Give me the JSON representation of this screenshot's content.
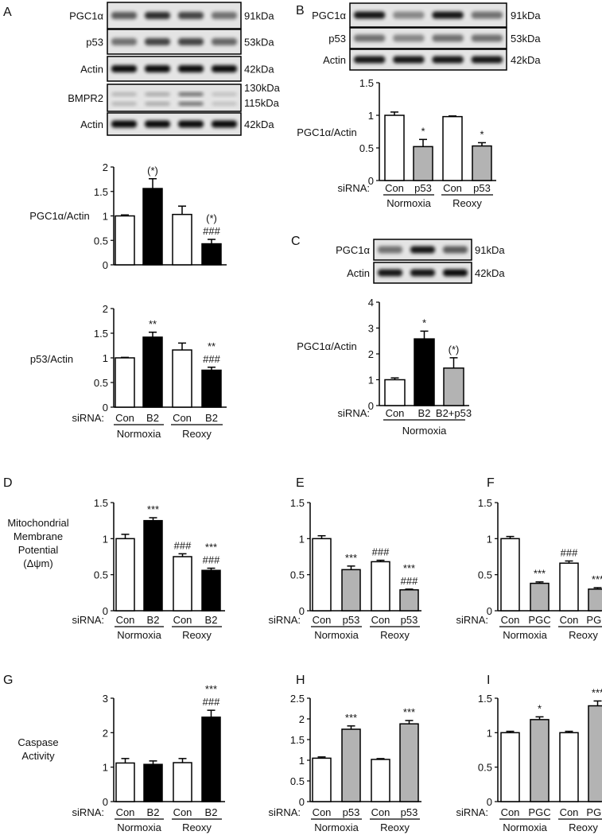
{
  "colors": {
    "Con": "#ffffff",
    "B2": "#000000",
    "p53": "#b3b3b3",
    "B2+p53": "#b3b3b3",
    "PGC": "#b3b3b3"
  },
  "panels": {
    "A": {
      "letter": "A",
      "blots": [
        {
          "label": "PGC1α",
          "size": "91kDa"
        },
        {
          "label": "p53",
          "size": "53kDa"
        },
        {
          "label": "Actin",
          "size": "42kDa"
        },
        {
          "label": "BMPR2",
          "size": "130kDa",
          "size2": "115kDa"
        },
        {
          "label": "Actin",
          "size": "42kDa"
        }
      ]
    },
    "B": {
      "letter": "B",
      "blots": [
        {
          "label": "PGC1α",
          "size": "91kDa"
        },
        {
          "label": "p53",
          "size": "53kDa"
        },
        {
          "label": "Actin",
          "size": "42kDa"
        }
      ]
    },
    "C": {
      "letter": "C",
      "blots": [
        {
          "label": "PGC1α",
          "size": "91kDa"
        },
        {
          "label": "Actin",
          "size": "42kDa"
        }
      ]
    },
    "D": {
      "letter": "D"
    },
    "E": {
      "letter": "E"
    },
    "F": {
      "letter": "F"
    },
    "G": {
      "letter": "G"
    },
    "H": {
      "letter": "H"
    },
    "I": {
      "letter": "I"
    }
  },
  "chart_data": [
    {
      "id": "A1",
      "type": "bar",
      "ylabel": [
        "PGC1α/Actin"
      ],
      "ylim": [
        0,
        2
      ],
      "yticks": [
        "0",
        "0.5",
        "1",
        "1.5",
        "2"
      ],
      "categories": [
        "Con",
        "B2",
        "Con",
        "B2"
      ],
      "values": [
        1.0,
        1.56,
        1.03,
        0.43
      ],
      "errors": [
        0.02,
        0.2,
        0.17,
        0.09
      ],
      "annotations": [
        [],
        [
          "(*)"
        ],
        [],
        [
          "(*)",
          "###"
        ]
      ]
    },
    {
      "id": "A2",
      "type": "bar",
      "ylabel": [
        "p53/Actin"
      ],
      "ylim": [
        0,
        2
      ],
      "yticks": [
        "0",
        "0.5",
        "1",
        "1.5",
        "2"
      ],
      "categories": [
        "Con",
        "B2",
        "Con",
        "B2"
      ],
      "values": [
        1.0,
        1.42,
        1.16,
        0.75
      ],
      "errors": [
        0.01,
        0.1,
        0.14,
        0.06
      ],
      "annotations": [
        [],
        [
          "**"
        ],
        [],
        [
          "**",
          "###"
        ]
      ],
      "xprefix": "siRNA:",
      "groups": [
        {
          "label": "Normoxia",
          "bars": [
            0,
            1
          ]
        },
        {
          "label": "Reoxy",
          "bars": [
            2,
            3
          ]
        }
      ]
    },
    {
      "id": "B",
      "type": "bar",
      "ylabel": [
        "PGC1α/Actin"
      ],
      "ylim": [
        0,
        1.5
      ],
      "yticks": [
        "0",
        "0.5",
        "1",
        "1.5"
      ],
      "categories": [
        "Con",
        "p53",
        "Con",
        "p53"
      ],
      "values": [
        1.0,
        0.52,
        0.98,
        0.53
      ],
      "errors": [
        0.05,
        0.11,
        0.01,
        0.05
      ],
      "annotations": [
        [],
        [
          "*"
        ],
        [],
        [
          "*"
        ]
      ],
      "xprefix": "siRNA:",
      "groups": [
        {
          "label": "Normoxia",
          "bars": [
            0,
            1
          ]
        },
        {
          "label": "Reoxy",
          "bars": [
            2,
            3
          ]
        }
      ]
    },
    {
      "id": "C",
      "type": "bar",
      "ylabel": [
        "PGC1α/Actin"
      ],
      "ylim": [
        0,
        4
      ],
      "yticks": [
        "0",
        "1",
        "2",
        "3",
        "4"
      ],
      "categories": [
        "Con",
        "B2",
        "B2+p53"
      ],
      "values": [
        1.0,
        2.58,
        1.45
      ],
      "errors": [
        0.07,
        0.3,
        0.4
      ],
      "annotations": [
        [],
        [
          "*"
        ],
        [
          "(*)"
        ]
      ],
      "xprefix": "siRNA:",
      "groups": [
        {
          "label": "Normoxia",
          "bars": [
            0,
            1,
            2
          ]
        }
      ]
    },
    {
      "id": "D",
      "type": "bar",
      "ylabel": [
        "Mitochondrial",
        "Membrane",
        "Potential",
        "(Δψm)"
      ],
      "ylim": [
        0,
        1.5
      ],
      "yticks": [
        "0",
        "0.5",
        "1",
        "1.5"
      ],
      "categories": [
        "Con",
        "B2",
        "Con",
        "B2"
      ],
      "values": [
        1.0,
        1.25,
        0.75,
        0.56
      ],
      "errors": [
        0.06,
        0.04,
        0.04,
        0.03
      ],
      "annotations": [
        [],
        [
          "***"
        ],
        [
          "###"
        ],
        [
          "***",
          "###"
        ]
      ],
      "xprefix": "siRNA:",
      "groups": [
        {
          "label": "Normoxia",
          "bars": [
            0,
            1
          ]
        },
        {
          "label": "Reoxy",
          "bars": [
            2,
            3
          ]
        }
      ]
    },
    {
      "id": "E",
      "type": "bar",
      "ylabel": [],
      "ylim": [
        0,
        1.5
      ],
      "yticks": [
        "0",
        "0.5",
        "1",
        "1.5"
      ],
      "categories": [
        "Con",
        "p53",
        "Con",
        "p53"
      ],
      "values": [
        1.0,
        0.57,
        0.68,
        0.29
      ],
      "errors": [
        0.04,
        0.05,
        0.02,
        0.01
      ],
      "annotations": [
        [],
        [
          "***"
        ],
        [
          "###"
        ],
        [
          "***",
          "###"
        ]
      ],
      "xprefix": "siRNA:",
      "groups": [
        {
          "label": "Normoxia",
          "bars": [
            0,
            1
          ]
        },
        {
          "label": "Reoxy",
          "bars": [
            2,
            3
          ]
        }
      ]
    },
    {
      "id": "F",
      "type": "bar",
      "ylabel": [],
      "ylim": [
        0,
        1.5
      ],
      "yticks": [
        "0",
        "0.5",
        "1",
        "1.5"
      ],
      "categories": [
        "Con",
        "PGC",
        "Con",
        "PGC"
      ],
      "values": [
        1.0,
        0.38,
        0.66,
        0.3
      ],
      "errors": [
        0.03,
        0.02,
        0.03,
        0.02
      ],
      "annotations": [
        [],
        [
          "***"
        ],
        [
          "###"
        ],
        [
          "***"
        ]
      ],
      "xprefix": "siRNA:",
      "groups": [
        {
          "label": "Normoxia",
          "bars": [
            0,
            1
          ]
        },
        {
          "label": "Reoxy",
          "bars": [
            2,
            3
          ]
        }
      ]
    },
    {
      "id": "G",
      "type": "bar",
      "ylabel": [
        "Caspase",
        "Activity"
      ],
      "ylim": [
        0,
        3
      ],
      "yticks": [
        "0",
        "1",
        "2",
        "3"
      ],
      "categories": [
        "Con",
        "B2",
        "Con",
        "B2"
      ],
      "values": [
        1.12,
        1.08,
        1.13,
        2.45
      ],
      "errors": [
        0.13,
        0.1,
        0.12,
        0.2
      ],
      "annotations": [
        [],
        [],
        [],
        [
          "***",
          "###"
        ]
      ],
      "xprefix": "siRNA:",
      "groups": [
        {
          "label": "Normoxia",
          "bars": [
            0,
            1
          ]
        },
        {
          "label": "Reoxy",
          "bars": [
            2,
            3
          ]
        }
      ]
    },
    {
      "id": "H",
      "type": "bar",
      "ylabel": [],
      "ylim": [
        0,
        2.5
      ],
      "yticks": [
        "0",
        "0.5",
        "1",
        "1.5",
        "2",
        "2.5"
      ],
      "categories": [
        "Con",
        "p53",
        "Con",
        "p53"
      ],
      "values": [
        1.05,
        1.75,
        1.02,
        1.88
      ],
      "errors": [
        0.03,
        0.08,
        0.02,
        0.08
      ],
      "annotations": [
        [],
        [
          "***"
        ],
        [],
        [
          "***"
        ]
      ],
      "xprefix": "siRNA:",
      "groups": [
        {
          "label": "Normoxia",
          "bars": [
            0,
            1
          ]
        },
        {
          "label": "Reoxy",
          "bars": [
            2,
            3
          ]
        }
      ]
    },
    {
      "id": "I",
      "type": "bar",
      "ylabel": [],
      "ylim": [
        0,
        1.5
      ],
      "yticks": [
        "0",
        "0.5",
        "1",
        "1.5"
      ],
      "categories": [
        "Con",
        "PGC",
        "Con",
        "PGC"
      ],
      "values": [
        1.0,
        1.19,
        1.0,
        1.39
      ],
      "errors": [
        0.02,
        0.04,
        0.02,
        0.07
      ],
      "annotations": [
        [],
        [
          "*"
        ],
        [],
        [
          "***"
        ]
      ],
      "xprefix": "siRNA:",
      "groups": [
        {
          "label": "Normoxia",
          "bars": [
            0,
            1
          ]
        },
        {
          "label": "Reoxy",
          "bars": [
            2,
            3
          ]
        }
      ]
    }
  ]
}
